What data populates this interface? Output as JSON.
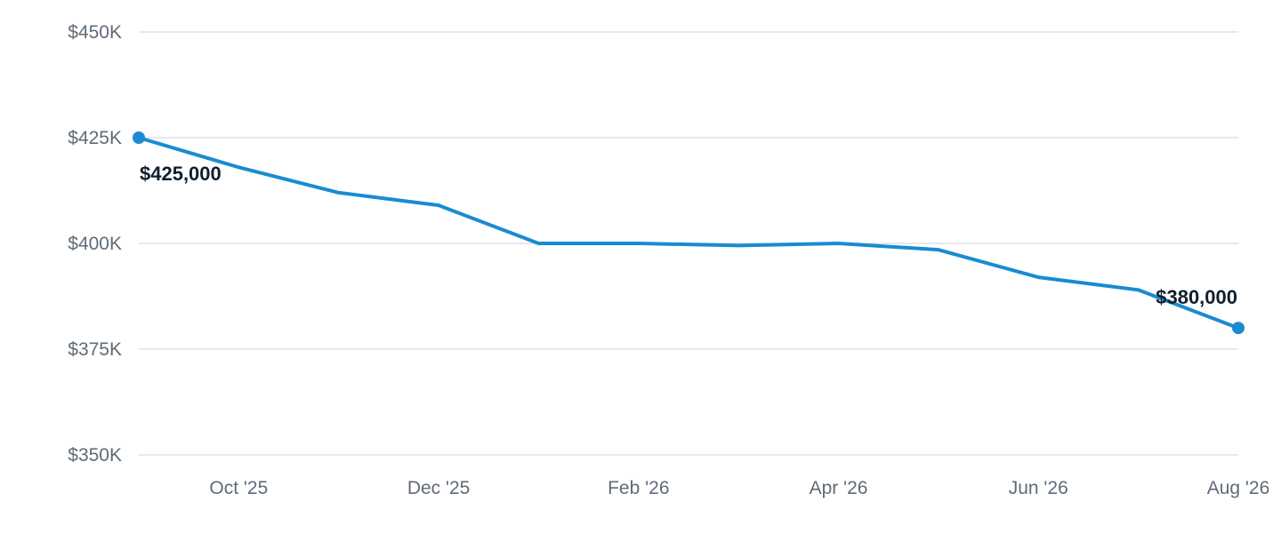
{
  "chart_data": {
    "type": "line",
    "title": "",
    "xlabel": "",
    "ylabel": "",
    "x": [
      "2025-09",
      "2025-10",
      "2025-11",
      "2025-12",
      "2026-01",
      "2026-02",
      "2026-03",
      "2026-04",
      "2026-05",
      "2026-06",
      "2026-07",
      "2026-08"
    ],
    "series": [
      {
        "values": [
          425000,
          418000,
          412000,
          409000,
          400000,
          400000,
          399500,
          400000,
          398500,
          392000,
          389000,
          380000
        ]
      }
    ],
    "ylim": [
      350000,
      450000
    ],
    "y_ticks": [
      450000,
      425000,
      400000,
      375000,
      350000
    ],
    "y_tick_labels": [
      "$450K",
      "$425K",
      "$400K",
      "$375K",
      "$350K"
    ],
    "x_tick_positions": [
      "2025-10",
      "2025-12",
      "2026-02",
      "2026-04",
      "2026-06",
      "2026-08"
    ],
    "x_tick_labels": [
      "Oct '25",
      "Dec '25",
      "Feb '26",
      "Apr '26",
      "Jun '26",
      "Aug '26"
    ],
    "data_labels": [
      {
        "at": "2025-09",
        "text": "$425,000"
      },
      {
        "at": "2026-08",
        "text": "$380,000"
      }
    ],
    "grid": true,
    "legend": "none",
    "colors": {
      "line": "#1a8bd0",
      "grid": "#dde2e8",
      "tick_text": "#5f6b78",
      "label_text": "#0f1f2f"
    }
  }
}
